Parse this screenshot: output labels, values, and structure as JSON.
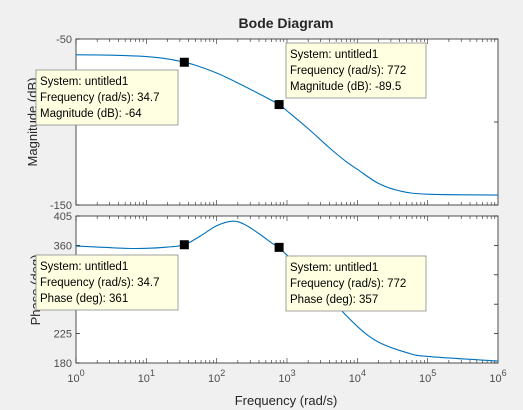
{
  "chart_data": {
    "type": "line",
    "title": "Bode Diagram",
    "xlabel": "Frequency  (rad/s)",
    "xscale": "log",
    "xlim": [
      1,
      1000000
    ],
    "x_ticks": [
      {
        "value": 1,
        "base": "10",
        "exp": "0"
      },
      {
        "value": 10,
        "base": "10",
        "exp": "1"
      },
      {
        "value": 100,
        "base": "10",
        "exp": "2"
      },
      {
        "value": 1000,
        "base": "10",
        "exp": "3"
      },
      {
        "value": 10000,
        "base": "10",
        "exp": "4"
      },
      {
        "value": 100000,
        "base": "10",
        "exp": "5"
      },
      {
        "value": 1000000,
        "base": "10",
        "exp": "6"
      }
    ],
    "line_color": "#0072bd",
    "grid": false,
    "panels": [
      {
        "name": "magnitude",
        "ylabel": "Magnitude (dB)",
        "ylim": [
          -150,
          -50
        ],
        "y_ticks": [
          -150,
          -100,
          -50
        ],
        "y_tick_labels": [
          "-150",
          "",
          "-50"
        ],
        "series": [
          {
            "x": [
              1,
              2,
              5,
              10,
              20,
              34.7,
              50,
              100,
              200,
              400,
              772,
              1000,
              2000,
              4000,
              7000,
              10000,
              20000,
              40000,
              100000,
              1000000
            ],
            "y": [
              -59.5,
              -59.6,
              -60.0,
              -60.6,
              -62.0,
              -64.0,
              -65.8,
              -70.5,
              -76.5,
              -83.0,
              -89.5,
              -93.3,
              -104.0,
              -115.5,
              -124.0,
              -128.5,
              -137.0,
              -141.5,
              -143.5,
              -144.0
            ]
          }
        ],
        "datatips": [
          {
            "x": 34.7,
            "y": -64,
            "system": "System: untitled1",
            "freq": "Frequency (rad/s): 34.7",
            "value": "Magnitude (dB): -64"
          },
          {
            "x": 772,
            "y": -89.5,
            "system": "System: untitled1",
            "freq": "Frequency (rad/s): 772",
            "value": "Magnitude (dB): -89.5"
          }
        ]
      },
      {
        "name": "phase",
        "ylabel": "Phase (deg)",
        "ylim": [
          180,
          405
        ],
        "y_ticks": [
          180,
          225,
          270,
          315,
          360,
          405
        ],
        "y_tick_labels": [
          "180",
          "225",
          "270",
          "315",
          "360",
          "405"
        ],
        "series": [
          {
            "x": [
              1,
              2,
              5,
              10,
              20,
              34.7,
              60,
              100,
              170,
              250,
              400,
              600,
              772,
              1000,
              2000,
              4000,
              10000,
              20000,
              50000,
              100000,
              1000000
            ],
            "y": [
              359,
              357.5,
              355.5,
              355.5,
              357.5,
              361,
              375,
              390,
              397,
              392,
              378,
              364,
              357,
              345,
              317,
              280,
              236,
              212,
              196,
              190,
              183
            ]
          }
        ],
        "datatips": [
          {
            "x": 34.7,
            "y": 361,
            "system": "System: untitled1",
            "freq": "Frequency (rad/s): 34.7",
            "value": "Phase (deg): 361"
          },
          {
            "x": 772,
            "y": 357,
            "system": "System: untitled1",
            "freq": "Frequency (rad/s): 772",
            "value": "Phase (deg): 357"
          }
        ]
      }
    ]
  }
}
